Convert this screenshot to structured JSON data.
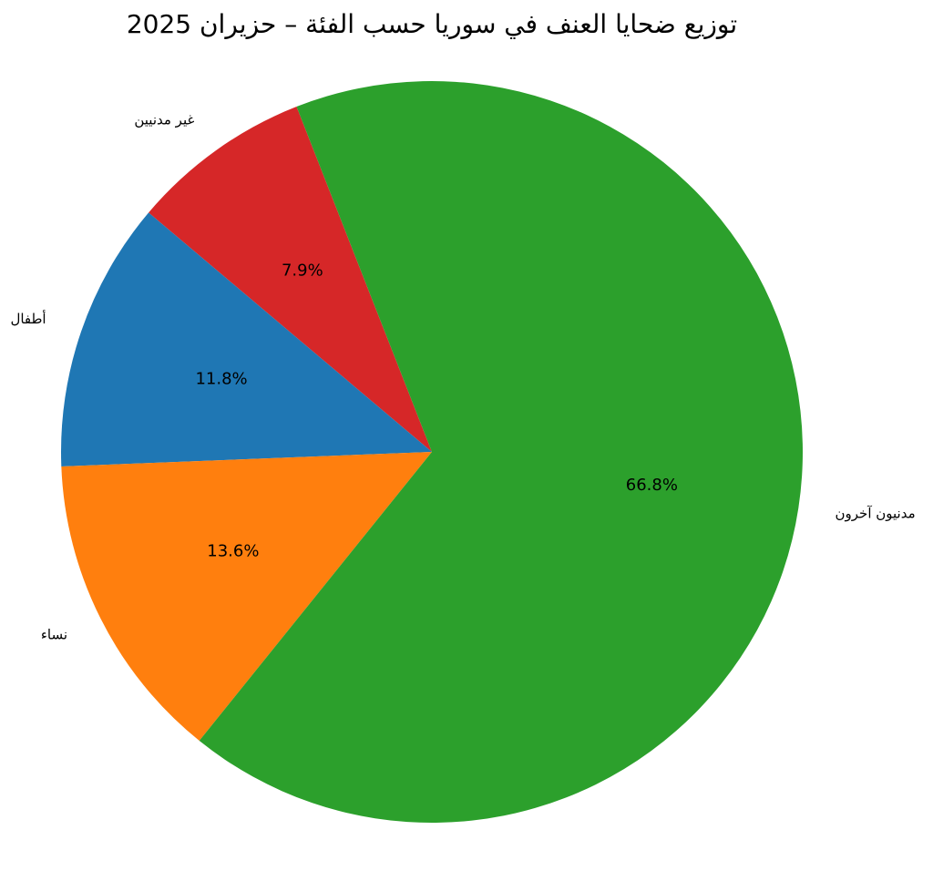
{
  "chart_data": {
    "type": "pie",
    "title": "توزيع ضحايا العنف في سوريا حسب الفئة – حزيران 2025",
    "categories": [
      "غير مدنيين",
      "أطفال",
      "نساء",
      "مدنيون آخرون"
    ],
    "values": [
      7.9,
      11.8,
      13.6,
      66.8
    ],
    "value_labels": [
      "7.9%",
      "11.8%",
      "13.6%",
      "66.8%"
    ],
    "colors": [
      "#d62728",
      "#1f77b4",
      "#ff7f0e",
      "#2ca02c"
    ]
  }
}
